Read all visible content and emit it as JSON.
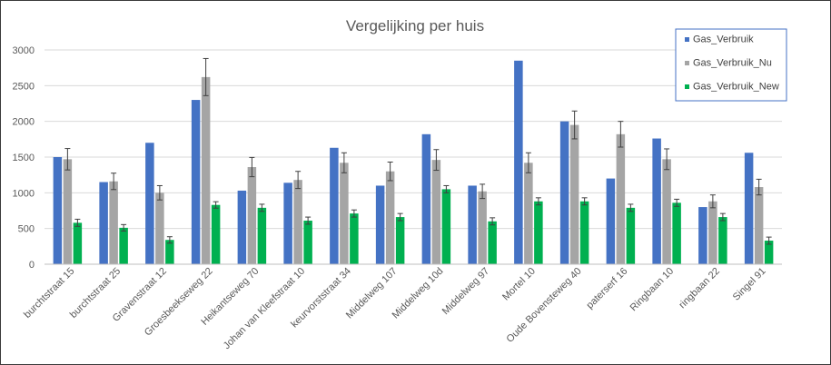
{
  "chart_data": {
    "type": "bar",
    "title": "Vergelijking per huis",
    "xlabel": "",
    "ylabel": "",
    "ylim": [
      0,
      3000
    ],
    "yticks": [
      0,
      500,
      1000,
      1500,
      2000,
      2500,
      3000
    ],
    "grid": true,
    "legend_position": "top-right",
    "categories": [
      "burchtstraat 15",
      "burchtstraat 25",
      "Gravenstraat 12",
      "Groesbeekseweg 22",
      "Heikantseweg 70",
      "Johan van Kleefstraat 10",
      "keurvorststraat 34",
      "Middelweg 107",
      "Middelweg 10d",
      "Middelweg 97",
      "Mortel 10",
      "Oude Bovensteweg 40",
      "paterserf 16",
      "Ringbaan 10",
      "ringbaan 22",
      "Singel 91"
    ],
    "series": [
      {
        "name": "Gas_Verbruik",
        "color": "#4472c4",
        "values": [
          1500,
          1150,
          1700,
          2300,
          1030,
          1140,
          1630,
          1100,
          1820,
          1100,
          2850,
          2000,
          1200,
          1760,
          800,
          1560
        ]
      },
      {
        "name": "Gas_Verbruik_Nu",
        "color": "#a5a5a5",
        "values": [
          1470,
          1160,
          1000,
          2620,
          1360,
          1180,
          1420,
          1300,
          1460,
          1020,
          1420,
          1950,
          1820,
          1470,
          880,
          1080
        ],
        "error": [
          150,
          115,
          100,
          260,
          135,
          120,
          140,
          130,
          145,
          100,
          140,
          195,
          180,
          145,
          90,
          110
        ]
      },
      {
        "name": "Gas_Verbruik_New",
        "color": "#00b050",
        "values": [
          580,
          510,
          340,
          830,
          790,
          610,
          710,
          660,
          1050,
          600,
          880,
          880,
          790,
          860,
          660,
          330
        ],
        "error": [
          50,
          45,
          45,
          45,
          50,
          50,
          50,
          50,
          50,
          50,
          50,
          50,
          50,
          50,
          50,
          50
        ]
      }
    ]
  }
}
